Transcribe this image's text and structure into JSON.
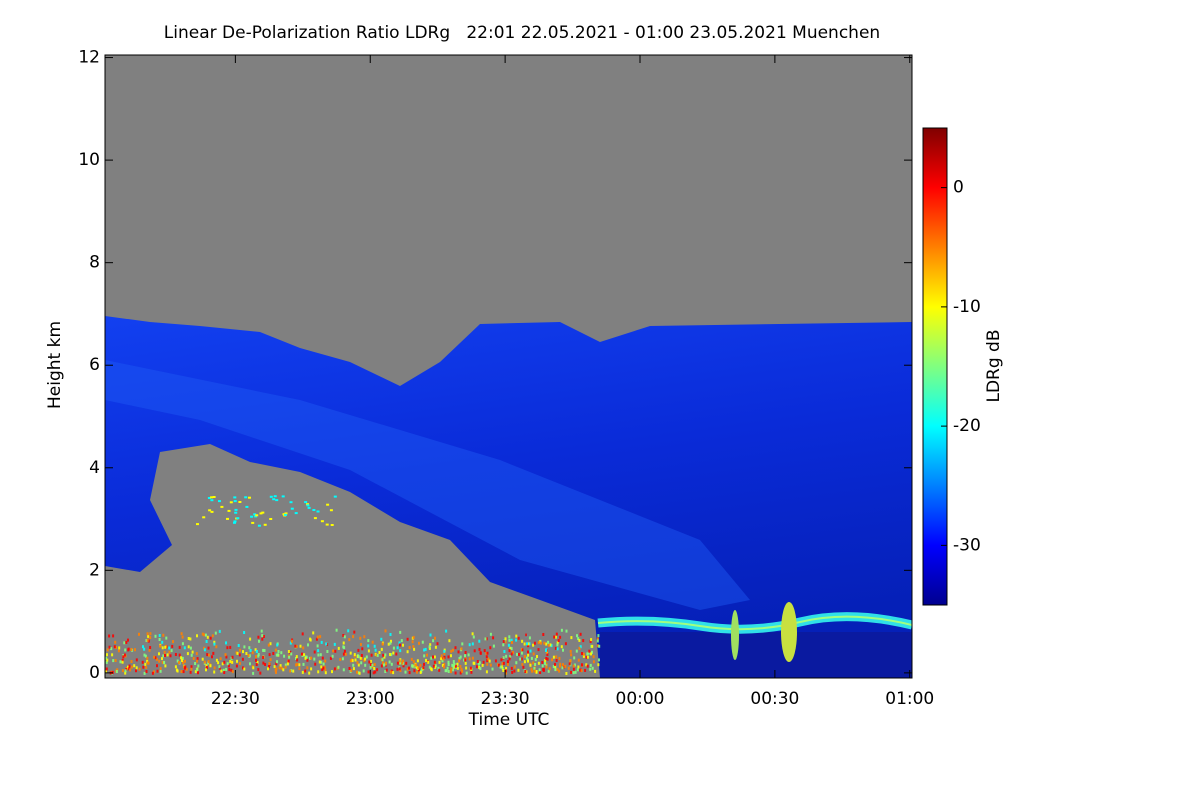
{
  "chart_data": {
    "type": "heatmap",
    "title": "Linear De-Polarization Ratio LDRg   22:01 22.05.2021 - 01:00 23.05.2021 Muenchen",
    "x_label": "Time UTC",
    "y_label": "Height km",
    "xlim": [
      1,
      180.5
    ],
    "xticks": [
      {
        "value": 30,
        "label": "22:30"
      },
      {
        "value": 60,
        "label": "23:00"
      },
      {
        "value": 90,
        "label": "23:30"
      },
      {
        "value": 120,
        "label": "00:00"
      },
      {
        "value": 150,
        "label": "00:30"
      },
      {
        "value": 180,
        "label": "01:00"
      }
    ],
    "ylim": [
      -0.1,
      12.05
    ],
    "yticks": [
      0,
      2,
      4,
      6,
      8,
      10,
      12
    ],
    "colorbar": {
      "label": "LDRg dB",
      "lim": [
        -35,
        5
      ],
      "ticks": [
        0,
        -10,
        -20,
        -30
      ]
    },
    "colormap": "jet"
  }
}
